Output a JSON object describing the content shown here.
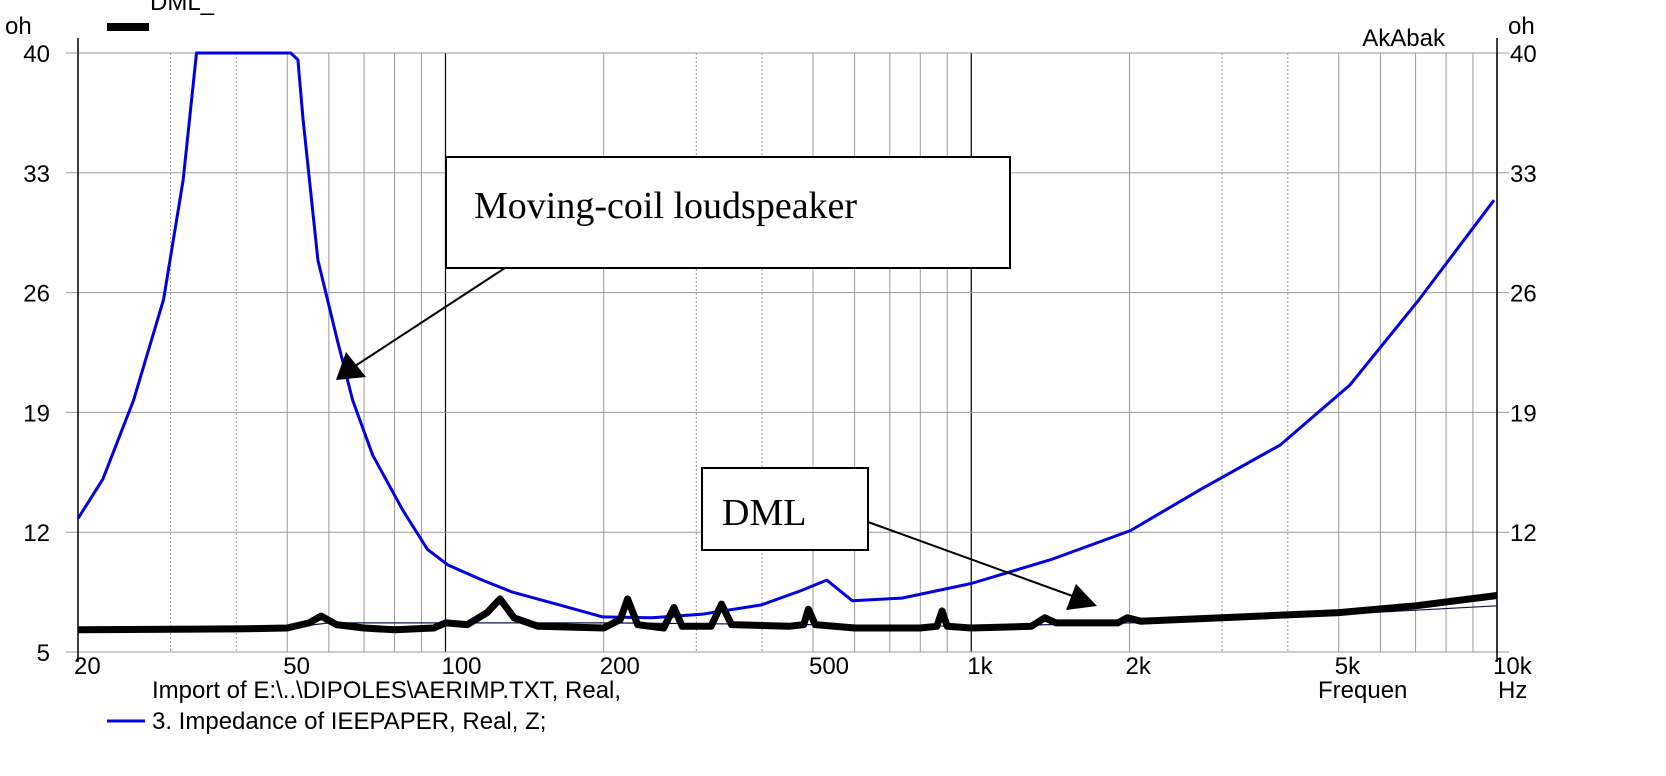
{
  "chart_data": {
    "type": "line",
    "title": "",
    "legend_top": "DML_",
    "brand": "AkAbak",
    "ylabel_left": "oh",
    "ylabel_right": "oh",
    "xlabel": "Frequen",
    "xunit": "Hz",
    "x_scale": "log",
    "xlim": [
      20,
      10000
    ],
    "ylim": [
      5,
      40
    ],
    "yticks": [
      5,
      12,
      19,
      26,
      33,
      40
    ],
    "xticks": [
      {
        "v": 20,
        "label": "20"
      },
      {
        "v": 50,
        "label": "50"
      },
      {
        "v": 100,
        "label": "100"
      },
      {
        "v": 200,
        "label": "200"
      },
      {
        "v": 500,
        "label": "500"
      },
      {
        "v": 1000,
        "label": "1k"
      },
      {
        "v": 2000,
        "label": "2k"
      },
      {
        "v": 5000,
        "label": "5k"
      },
      {
        "v": 10000,
        "label": "10k"
      }
    ],
    "grid": true,
    "legend": [
      "Import of E:\\..\\DIPOLES\\AERIMP.TXT, Real,",
      "3. Impedance of IEEPAPER, Real, Z;"
    ],
    "annotations": [
      {
        "text": "Moving-coil loudspeaker",
        "points_to": {
          "x": 62,
          "y": 22
        }
      },
      {
        "text": "DML",
        "points_to": {
          "x": 1700,
          "y": 7.9
        }
      }
    ],
    "series": [
      {
        "color": "#0000e0",
        "x": [
          20,
          22.3,
          25.5,
          29.1,
          31.7,
          33.6,
          50.8,
          52.4,
          53.6,
          57.2,
          62.3,
          66.6,
          72.7,
          82.9,
          92.4,
          100.9,
          117.5,
          134,
          167,
          199,
          247,
          307,
          399,
          476,
          531,
          594,
          738,
          1000,
          1418,
          2010,
          2730,
          3872,
          5251,
          7113,
          9870
        ],
        "y": [
          12.8,
          15.1,
          19.7,
          25.6,
          32.6,
          40,
          40,
          39.6,
          36.1,
          27.9,
          23.2,
          19.7,
          16.5,
          13.3,
          11.0,
          10.1,
          9.2,
          8.5,
          7.7,
          7.05,
          7.0,
          7.2,
          7.75,
          8.6,
          9.2,
          8.0,
          8.15,
          9.0,
          10.4,
          12.1,
          14.5,
          17.1,
          20.6,
          25.6,
          31.4
        ]
      },
      {
        "color": "#000000",
        "x": [
          20,
          40,
          50,
          55,
          58,
          62,
          70,
          80,
          95,
          100,
          110,
          120,
          127,
          135,
          150,
          200,
          215,
          222,
          232,
          260,
          272,
          282,
          320,
          335,
          350,
          450,
          480,
          490,
          505,
          600,
          800,
          860,
          880,
          900,
          1000,
          1300,
          1380,
          1450,
          1900,
          1980,
          2100,
          3000,
          5000,
          7000,
          10000
        ],
        "y": [
          6.3,
          6.35,
          6.4,
          6.7,
          7.1,
          6.6,
          6.4,
          6.3,
          6.4,
          6.7,
          6.6,
          7.3,
          8.1,
          7.0,
          6.5,
          6.4,
          6.9,
          8.1,
          6.6,
          6.4,
          7.6,
          6.5,
          6.5,
          7.8,
          6.6,
          6.5,
          6.6,
          7.5,
          6.6,
          6.4,
          6.4,
          6.5,
          7.4,
          6.5,
          6.4,
          6.5,
          7.0,
          6.7,
          6.7,
          7.0,
          6.8,
          7.0,
          7.3,
          7.7,
          8.3
        ]
      },
      {
        "color": "#101050",
        "x": [
          20,
          50,
          60,
          100,
          200,
          500,
          1000,
          2000,
          5000,
          10000
        ],
        "y": [
          6.3,
          6.4,
          6.7,
          6.7,
          6.7,
          6.6,
          6.5,
          6.7,
          7.2,
          7.7
        ]
      }
    ]
  }
}
